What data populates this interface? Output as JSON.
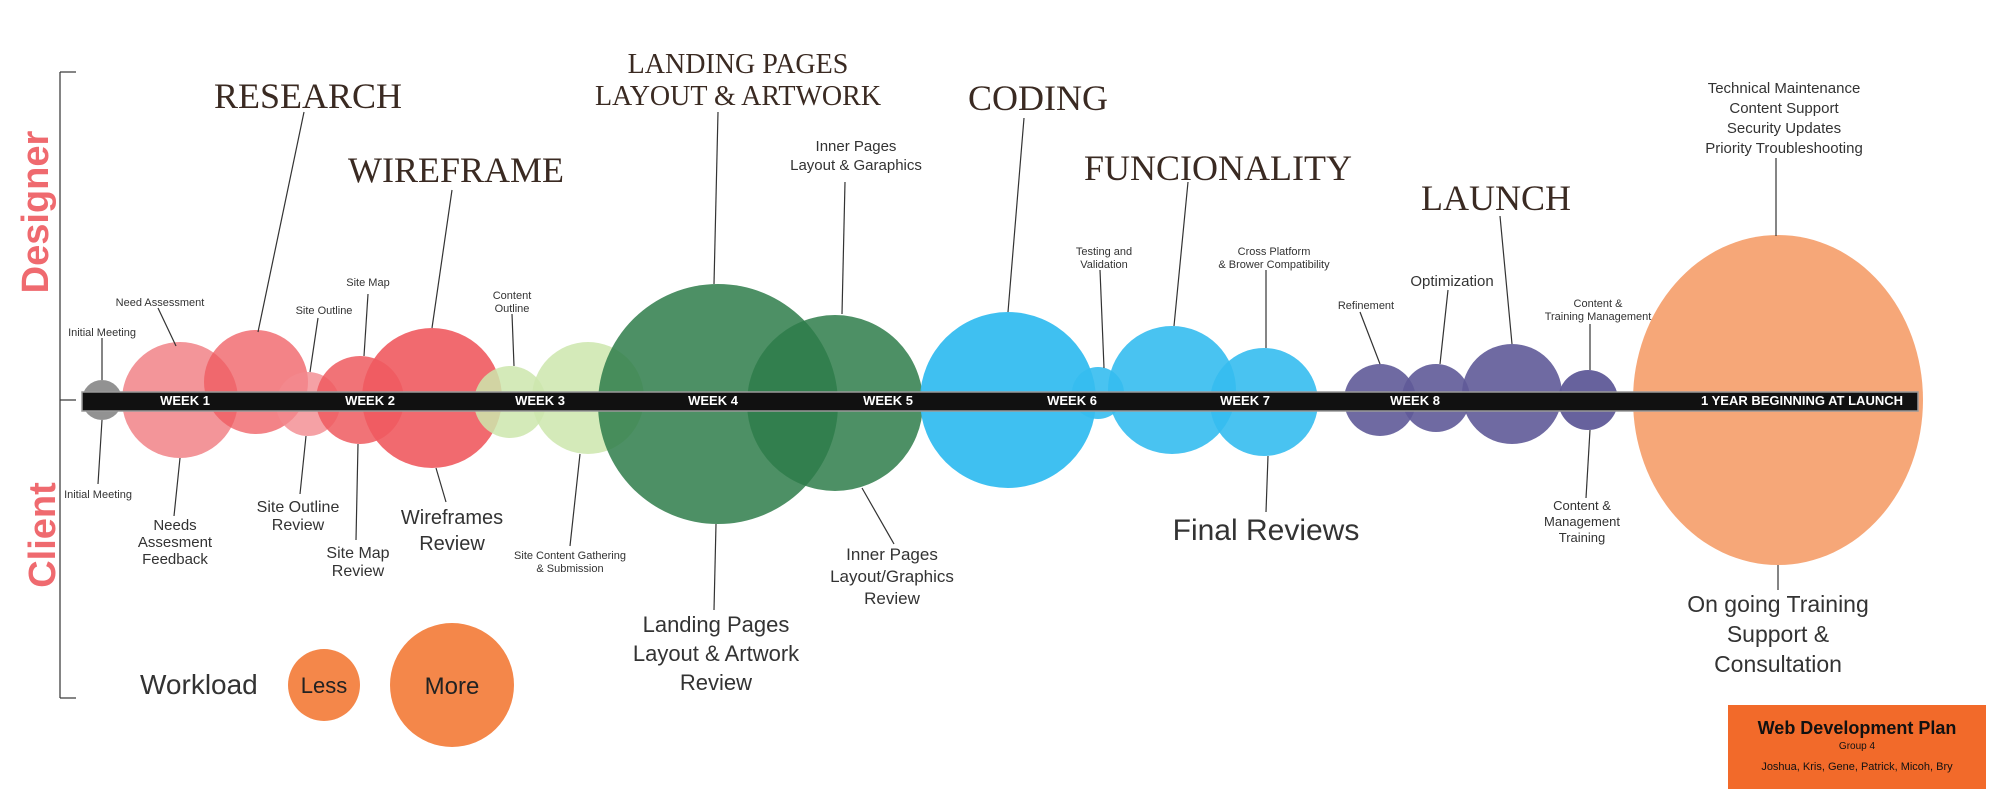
{
  "side_labels": {
    "designer": "Designer",
    "client": "Client"
  },
  "phases": {
    "research": "RESEARCH",
    "wireframe": "WIREFRAME",
    "landing_line1": "LANDING PAGES",
    "landing_line2": "LAYOUT & ARTWORK",
    "coding": "CODING",
    "funcionality": "FUNCIONALITY",
    "launch": "LAUNCH"
  },
  "weeks": [
    "WEEK 1",
    "WEEK 2",
    "WEEK 3",
    "WEEK 4",
    "WEEK 5",
    "WEEK 6",
    "WEEK 7",
    "WEEK 8",
    "1 YEAR BEGINNING AT LAUNCH"
  ],
  "designer_tasks": {
    "initial_meeting": "Initial Meeting",
    "need_assessment": "Need Assessment",
    "site_outline": "Site Outline",
    "site_map": "Site Map",
    "content_outline_1": "Content",
    "content_outline_2": "Outline",
    "inner_pages_1": "Inner Pages",
    "inner_pages_2": "Layout & Garaphics",
    "testing_1": "Testing and",
    "testing_2": "Validation",
    "cross_platform_1": "Cross Platform",
    "cross_platform_2": "& Brower Compatibility",
    "refinement": "Refinement",
    "optimization": "Optimization",
    "content_training_1": "Content &",
    "content_training_2": "Training Management",
    "maintenance_1": "Technical Maintenance",
    "maintenance_2": "Content Support",
    "maintenance_3": "Security Updates",
    "maintenance_4": "Priority Troubleshooting"
  },
  "client_tasks": {
    "initial_meeting": "Initial Meeting",
    "needs_1": "Needs",
    "needs_2": "Assesment",
    "needs_3": "Feedback",
    "site_outline_1": "Site Outline",
    "site_outline_2": "Review",
    "site_map_1": "Site Map",
    "site_map_2": "Review",
    "wireframes_1": "Wireframes",
    "wireframes_2": "Review",
    "content_gathering_1": "Site Content Gathering",
    "content_gathering_2": "& Submission",
    "landing_review_1": "Landing Pages",
    "landing_review_2": "Layout & Artwork",
    "landing_review_3": "Review",
    "inner_review_1": "Inner Pages",
    "inner_review_2": "Layout/Graphics",
    "inner_review_3": "Review",
    "final_reviews": "Final Reviews",
    "content_mgmt_1": "Content &",
    "content_mgmt_2": "Management",
    "content_mgmt_3": "Training",
    "ongoing_1": "On going Training",
    "ongoing_2": "Support &",
    "ongoing_3": "Consultation"
  },
  "legend": {
    "title": "Workload",
    "less": "Less",
    "more": "More"
  },
  "footer": {
    "title": "Web Development Plan",
    "group": "Group 4",
    "members": "Joshua, Kris, Gene, Patrick, Micoh, Bry"
  },
  "colors": {
    "gray": "#8c8c8c",
    "pink": "#f28a8e",
    "red": "#ef5a5f",
    "light_green": "#cde6ad",
    "dark_green": "#2e7d4a",
    "blue": "#35bdf0",
    "purple": "#5f5a98",
    "peach": "#f6a271",
    "orange": "#f4874a",
    "banner": "#f26a2a",
    "side_label": "#ef6a6f"
  }
}
